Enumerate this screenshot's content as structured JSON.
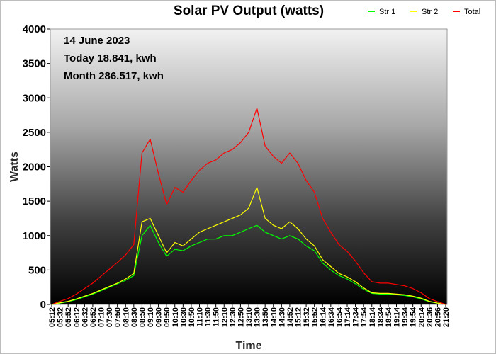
{
  "chart_data": {
    "type": "line",
    "title": "Solar PV Output (watts)",
    "xlabel": "Time",
    "ylabel": "Watts",
    "ylim": [
      0,
      4000
    ],
    "yticks": [
      0,
      500,
      1000,
      1500,
      2000,
      2500,
      3000,
      3500,
      4000
    ],
    "xticks": [
      "05:12",
      "05:32",
      "05:52",
      "06:12",
      "06:32",
      "06:52",
      "07:10",
      "07:30",
      "07:50",
      "08:10",
      "08:30",
      "08:50",
      "09:10",
      "09:30",
      "09:50",
      "10:10",
      "10:30",
      "10:50",
      "11:10",
      "11:30",
      "11:50",
      "12:10",
      "12:30",
      "12:50",
      "13:10",
      "13:30",
      "13:50",
      "14:10",
      "14:30",
      "14:52",
      "15:12",
      "15:32",
      "15:52",
      "16:14",
      "16:34",
      "16:54",
      "17:14",
      "17:34",
      "17:54",
      "18:14",
      "18:34",
      "18:54",
      "19:14",
      "19:34",
      "19:54",
      "20:14",
      "20:36",
      "20:56",
      "21:20"
    ],
    "annotations": [
      "14 June 2023",
      "Today 18.841, kwh",
      "Month 286.517, kwh"
    ],
    "legend_position": "top-right",
    "background": "vertical gradient, light grey at top to black at bottom",
    "x": [
      "05:12",
      "05:32",
      "05:52",
      "06:12",
      "06:32",
      "06:52",
      "07:10",
      "07:30",
      "07:50",
      "08:10",
      "08:30",
      "08:50",
      "09:10",
      "09:30",
      "09:50",
      "10:10",
      "10:30",
      "10:50",
      "11:10",
      "11:30",
      "11:50",
      "12:10",
      "12:30",
      "12:50",
      "13:10",
      "13:30",
      "13:50",
      "14:10",
      "14:30",
      "14:52",
      "15:12",
      "15:32",
      "15:52",
      "16:14",
      "16:34",
      "16:54",
      "17:14",
      "17:34",
      "17:54",
      "18:14",
      "18:34",
      "18:54",
      "19:14",
      "19:34",
      "19:54",
      "20:14",
      "20:36",
      "20:56",
      "21:20"
    ],
    "series": [
      {
        "name": "Str 1",
        "color": "#00ff00",
        "values": [
          0,
          20,
          40,
          70,
          110,
          150,
          200,
          250,
          300,
          350,
          420,
          1000,
          1150,
          900,
          700,
          800,
          780,
          850,
          900,
          950,
          950,
          1000,
          1000,
          1050,
          1100,
          1150,
          1050,
          1000,
          950,
          1000,
          950,
          850,
          780,
          600,
          500,
          420,
          370,
          300,
          220,
          160,
          150,
          150,
          140,
          130,
          110,
          80,
          40,
          20,
          0
        ]
      },
      {
        "name": "Str 2",
        "color": "#ffff00",
        "values": [
          0,
          25,
          45,
          80,
          120,
          160,
          210,
          260,
          310,
          370,
          450,
          1200,
          1250,
          1000,
          750,
          900,
          850,
          950,
          1050,
          1100,
          1150,
          1200,
          1250,
          1300,
          1400,
          1700,
          1250,
          1150,
          1100,
          1200,
          1100,
          950,
          850,
          650,
          550,
          450,
          400,
          330,
          240,
          170,
          160,
          160,
          150,
          140,
          120,
          90,
          45,
          20,
          0
        ]
      },
      {
        "name": "Total",
        "color": "#ff0000",
        "values": [
          0,
          45,
          85,
          150,
          230,
          310,
          410,
          510,
          610,
          720,
          870,
          2200,
          2400,
          1900,
          1450,
          1700,
          1630,
          1800,
          1950,
          2050,
          2100,
          2200,
          2250,
          2350,
          2500,
          2850,
          2300,
          2150,
          2050,
          2200,
          2050,
          1800,
          1630,
          1250,
          1050,
          870,
          770,
          630,
          460,
          330,
          310,
          310,
          290,
          270,
          230,
          170,
          85,
          40,
          0
        ]
      }
    ]
  }
}
